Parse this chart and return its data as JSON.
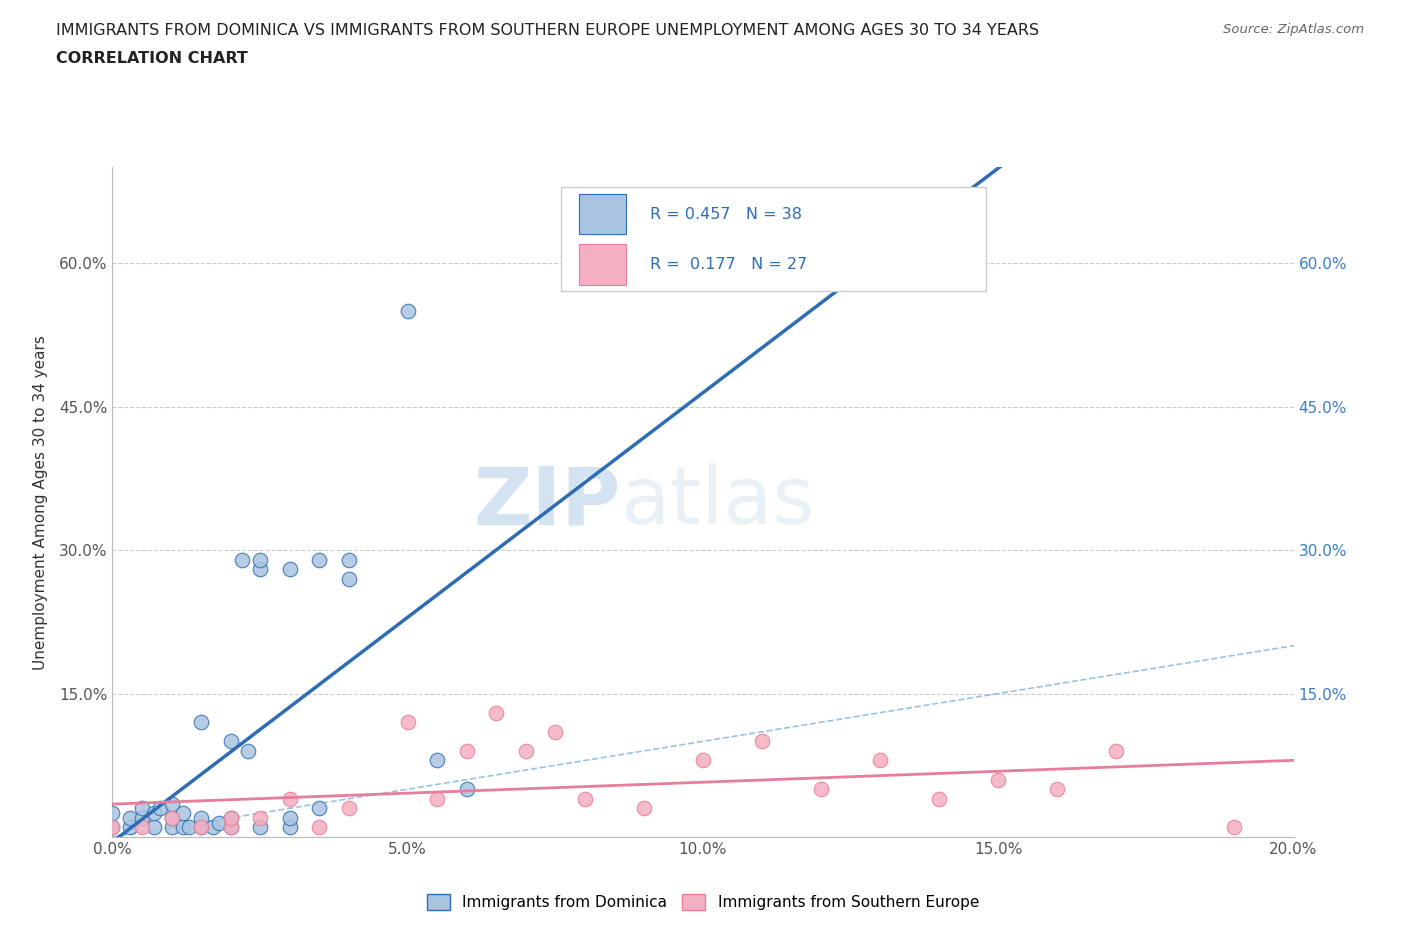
{
  "title_line1": "IMMIGRANTS FROM DOMINICA VS IMMIGRANTS FROM SOUTHERN EUROPE UNEMPLOYMENT AMONG AGES 30 TO 34 YEARS",
  "title_line2": "CORRELATION CHART",
  "source": "Source: ZipAtlas.com",
  "ylabel": "Unemployment Among Ages 30 to 34 years",
  "xlim": [
    0.0,
    0.2
  ],
  "ylim": [
    0.0,
    0.7
  ],
  "xticks": [
    0.0,
    0.05,
    0.1,
    0.15,
    0.2
  ],
  "yticks": [
    0.0,
    0.15,
    0.3,
    0.45,
    0.6
  ],
  "legend1_R": "0.457",
  "legend1_N": "38",
  "legend2_R": "0.177",
  "legend2_N": "27",
  "color_blue_fill": "#a8c4e0",
  "color_blue_edge": "#2e6db4",
  "color_pink_fill": "#f4afc0",
  "color_pink_edge": "#e87d99",
  "color_diag": "#7aaed6",
  "color_right_axis": "#3a7dc9",
  "watermark_zip": "ZIP",
  "watermark_atlas": "atlas",
  "dominica_x": [
    0.0,
    0.0,
    0.003,
    0.003,
    0.005,
    0.005,
    0.007,
    0.007,
    0.008,
    0.01,
    0.01,
    0.01,
    0.012,
    0.012,
    0.013,
    0.015,
    0.015,
    0.015,
    0.017,
    0.018,
    0.02,
    0.02,
    0.02,
    0.022,
    0.023,
    0.025,
    0.025,
    0.025,
    0.03,
    0.03,
    0.03,
    0.035,
    0.035,
    0.04,
    0.04,
    0.05,
    0.055,
    0.06
  ],
  "dominica_y": [
    0.01,
    0.025,
    0.01,
    0.02,
    0.02,
    0.03,
    0.01,
    0.025,
    0.03,
    0.01,
    0.02,
    0.035,
    0.01,
    0.025,
    0.01,
    0.01,
    0.02,
    0.12,
    0.01,
    0.015,
    0.01,
    0.02,
    0.1,
    0.29,
    0.09,
    0.01,
    0.28,
    0.29,
    0.01,
    0.02,
    0.28,
    0.29,
    0.03,
    0.27,
    0.29,
    0.55,
    0.08,
    0.05
  ],
  "southern_x": [
    0.0,
    0.005,
    0.01,
    0.015,
    0.02,
    0.02,
    0.025,
    0.03,
    0.035,
    0.04,
    0.05,
    0.055,
    0.06,
    0.065,
    0.07,
    0.075,
    0.08,
    0.09,
    0.1,
    0.11,
    0.12,
    0.13,
    0.14,
    0.15,
    0.16,
    0.17,
    0.19
  ],
  "southern_y": [
    0.01,
    0.01,
    0.02,
    0.01,
    0.01,
    0.02,
    0.02,
    0.04,
    0.01,
    0.03,
    0.12,
    0.04,
    0.09,
    0.13,
    0.09,
    0.11,
    0.04,
    0.03,
    0.08,
    0.1,
    0.05,
    0.08,
    0.04,
    0.06,
    0.05,
    0.09,
    0.01
  ],
  "legend_label1": "Immigrants from Dominica",
  "legend_label2": "Immigrants from Southern Europe"
}
